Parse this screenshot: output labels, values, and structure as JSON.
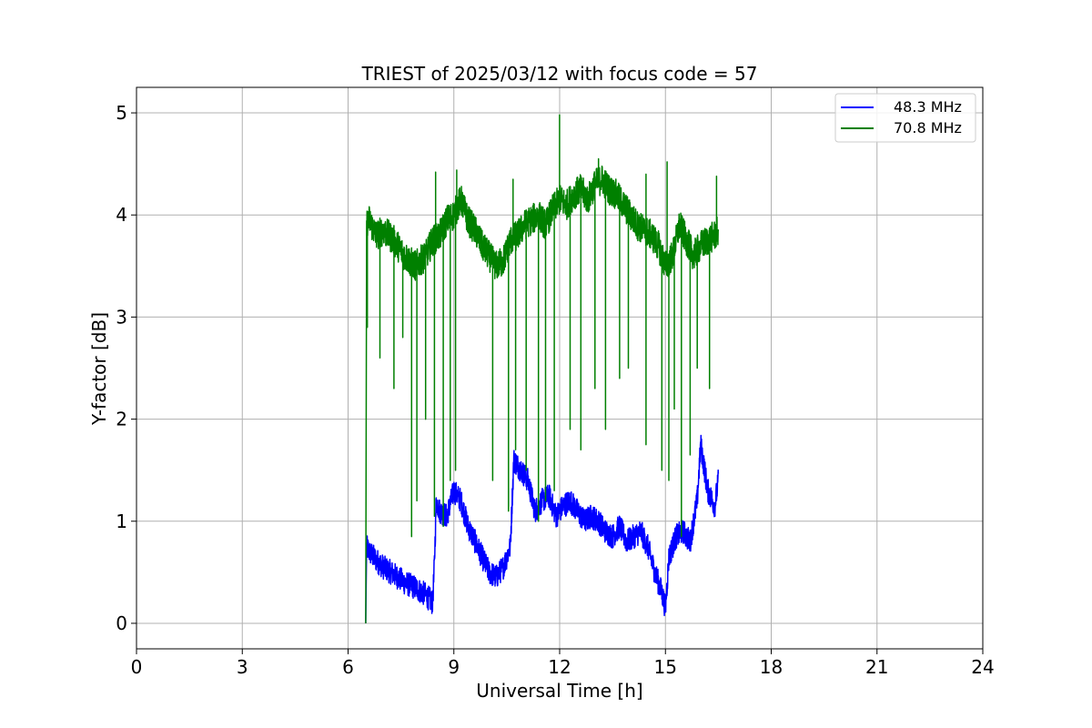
{
  "chart_data": {
    "type": "line",
    "title": "TRIEST of 2025/03/12 with focus code = 57",
    "xlabel": "Universal Time [h]",
    "ylabel": "Y-factor [dB]",
    "xlim": [
      0,
      24
    ],
    "ylim": [
      -0.25,
      5.25
    ],
    "x_ticks": [
      0,
      3,
      6,
      9,
      12,
      15,
      18,
      21,
      24
    ],
    "y_ticks": [
      0,
      1,
      2,
      3,
      4,
      5
    ],
    "grid": true,
    "legend_position": "top-right",
    "series": [
      {
        "name": "48.3 MHz",
        "color": "#0000ff",
        "x": [
          6.5,
          6.52,
          6.6,
          6.8,
          7.0,
          7.3,
          7.6,
          7.9,
          8.2,
          8.4,
          8.45,
          8.5,
          8.6,
          8.8,
          9.0,
          9.2,
          9.4,
          9.6,
          9.8,
          10.0,
          10.2,
          10.4,
          10.6,
          10.7,
          10.9,
          11.1,
          11.3,
          11.5,
          11.7,
          11.9,
          12.1,
          12.3,
          12.5,
          12.7,
          12.9,
          13.1,
          13.3,
          13.5,
          13.7,
          13.9,
          14.1,
          14.3,
          14.5,
          14.7,
          14.9,
          15.0,
          15.1,
          15.3,
          15.5,
          15.7,
          15.9,
          16.0,
          16.2,
          16.4,
          16.5
        ],
        "y": [
          0.0,
          0.75,
          0.7,
          0.62,
          0.55,
          0.48,
          0.4,
          0.35,
          0.28,
          0.2,
          0.6,
          1.2,
          1.1,
          1.05,
          1.3,
          1.2,
          0.95,
          0.8,
          0.65,
          0.5,
          0.45,
          0.55,
          0.75,
          1.6,
          1.5,
          1.4,
          1.1,
          1.2,
          1.25,
          1.05,
          1.15,
          1.2,
          1.1,
          1.0,
          1.05,
          1.0,
          0.9,
          0.85,
          0.95,
          0.8,
          0.85,
          0.9,
          0.75,
          0.5,
          0.3,
          0.15,
          0.65,
          0.85,
          0.9,
          0.8,
          1.2,
          1.75,
          1.3,
          1.15,
          1.4
        ],
        "noise": 0.12
      },
      {
        "name": "70.8 MHz",
        "color": "#008000",
        "x": [
          6.5,
          6.52,
          6.6,
          6.8,
          7.0,
          7.3,
          7.6,
          7.9,
          8.2,
          8.4,
          8.6,
          8.8,
          9.0,
          9.2,
          9.4,
          9.6,
          9.8,
          10.0,
          10.2,
          10.4,
          10.6,
          10.8,
          11.0,
          11.2,
          11.4,
          11.6,
          11.8,
          12.0,
          12.2,
          12.4,
          12.6,
          12.8,
          13.0,
          13.2,
          13.4,
          13.6,
          13.8,
          14.0,
          14.2,
          14.4,
          14.6,
          14.8,
          15.0,
          15.2,
          15.4,
          15.6,
          15.8,
          16.0,
          16.2,
          16.4,
          16.5
        ],
        "y": [
          0.0,
          3.9,
          3.95,
          3.8,
          3.85,
          3.75,
          3.6,
          3.5,
          3.6,
          3.75,
          3.8,
          3.95,
          4.0,
          4.15,
          3.95,
          3.85,
          3.7,
          3.6,
          3.5,
          3.55,
          3.75,
          3.8,
          3.9,
          3.95,
          4.0,
          3.9,
          4.05,
          4.15,
          4.1,
          4.2,
          4.25,
          4.15,
          4.3,
          4.35,
          4.25,
          4.2,
          4.1,
          4.0,
          3.9,
          3.85,
          3.8,
          3.7,
          3.5,
          3.6,
          3.9,
          3.75,
          3.6,
          3.7,
          3.75,
          3.8,
          3.85
        ],
        "noise": 0.15,
        "spikes": [
          [
            8.48,
            4.42
          ],
          [
            9.08,
            4.44
          ],
          [
            10.68,
            4.35
          ],
          [
            12.0,
            4.98
          ],
          [
            13.1,
            4.55
          ],
          [
            14.45,
            4.4
          ],
          [
            15.05,
            4.52
          ],
          [
            16.45,
            4.38
          ]
        ],
        "dips": [
          [
            6.55,
            2.9
          ],
          [
            6.9,
            2.6
          ],
          [
            7.3,
            2.3
          ],
          [
            7.55,
            2.8
          ],
          [
            7.8,
            0.85
          ],
          [
            7.95,
            1.2
          ],
          [
            8.2,
            2.0
          ],
          [
            8.45,
            1.05
          ],
          [
            8.7,
            0.95
          ],
          [
            8.9,
            1.4
          ],
          [
            9.05,
            1.5
          ],
          [
            10.1,
            1.4
          ],
          [
            10.55,
            1.1
          ],
          [
            10.75,
            1.7
          ],
          [
            11.05,
            1.5
          ],
          [
            11.4,
            1.0
          ],
          [
            11.6,
            1.2
          ],
          [
            11.85,
            1.3
          ],
          [
            12.3,
            1.9
          ],
          [
            12.6,
            1.7
          ],
          [
            13.0,
            2.3
          ],
          [
            13.3,
            1.9
          ],
          [
            13.7,
            2.4
          ],
          [
            13.95,
            2.5
          ],
          [
            14.45,
            1.75
          ],
          [
            14.9,
            1.5
          ],
          [
            15.1,
            1.4
          ],
          [
            15.25,
            2.1
          ],
          [
            15.45,
            0.85
          ],
          [
            15.7,
            1.65
          ],
          [
            15.9,
            2.5
          ],
          [
            16.25,
            2.3
          ]
        ]
      }
    ]
  }
}
